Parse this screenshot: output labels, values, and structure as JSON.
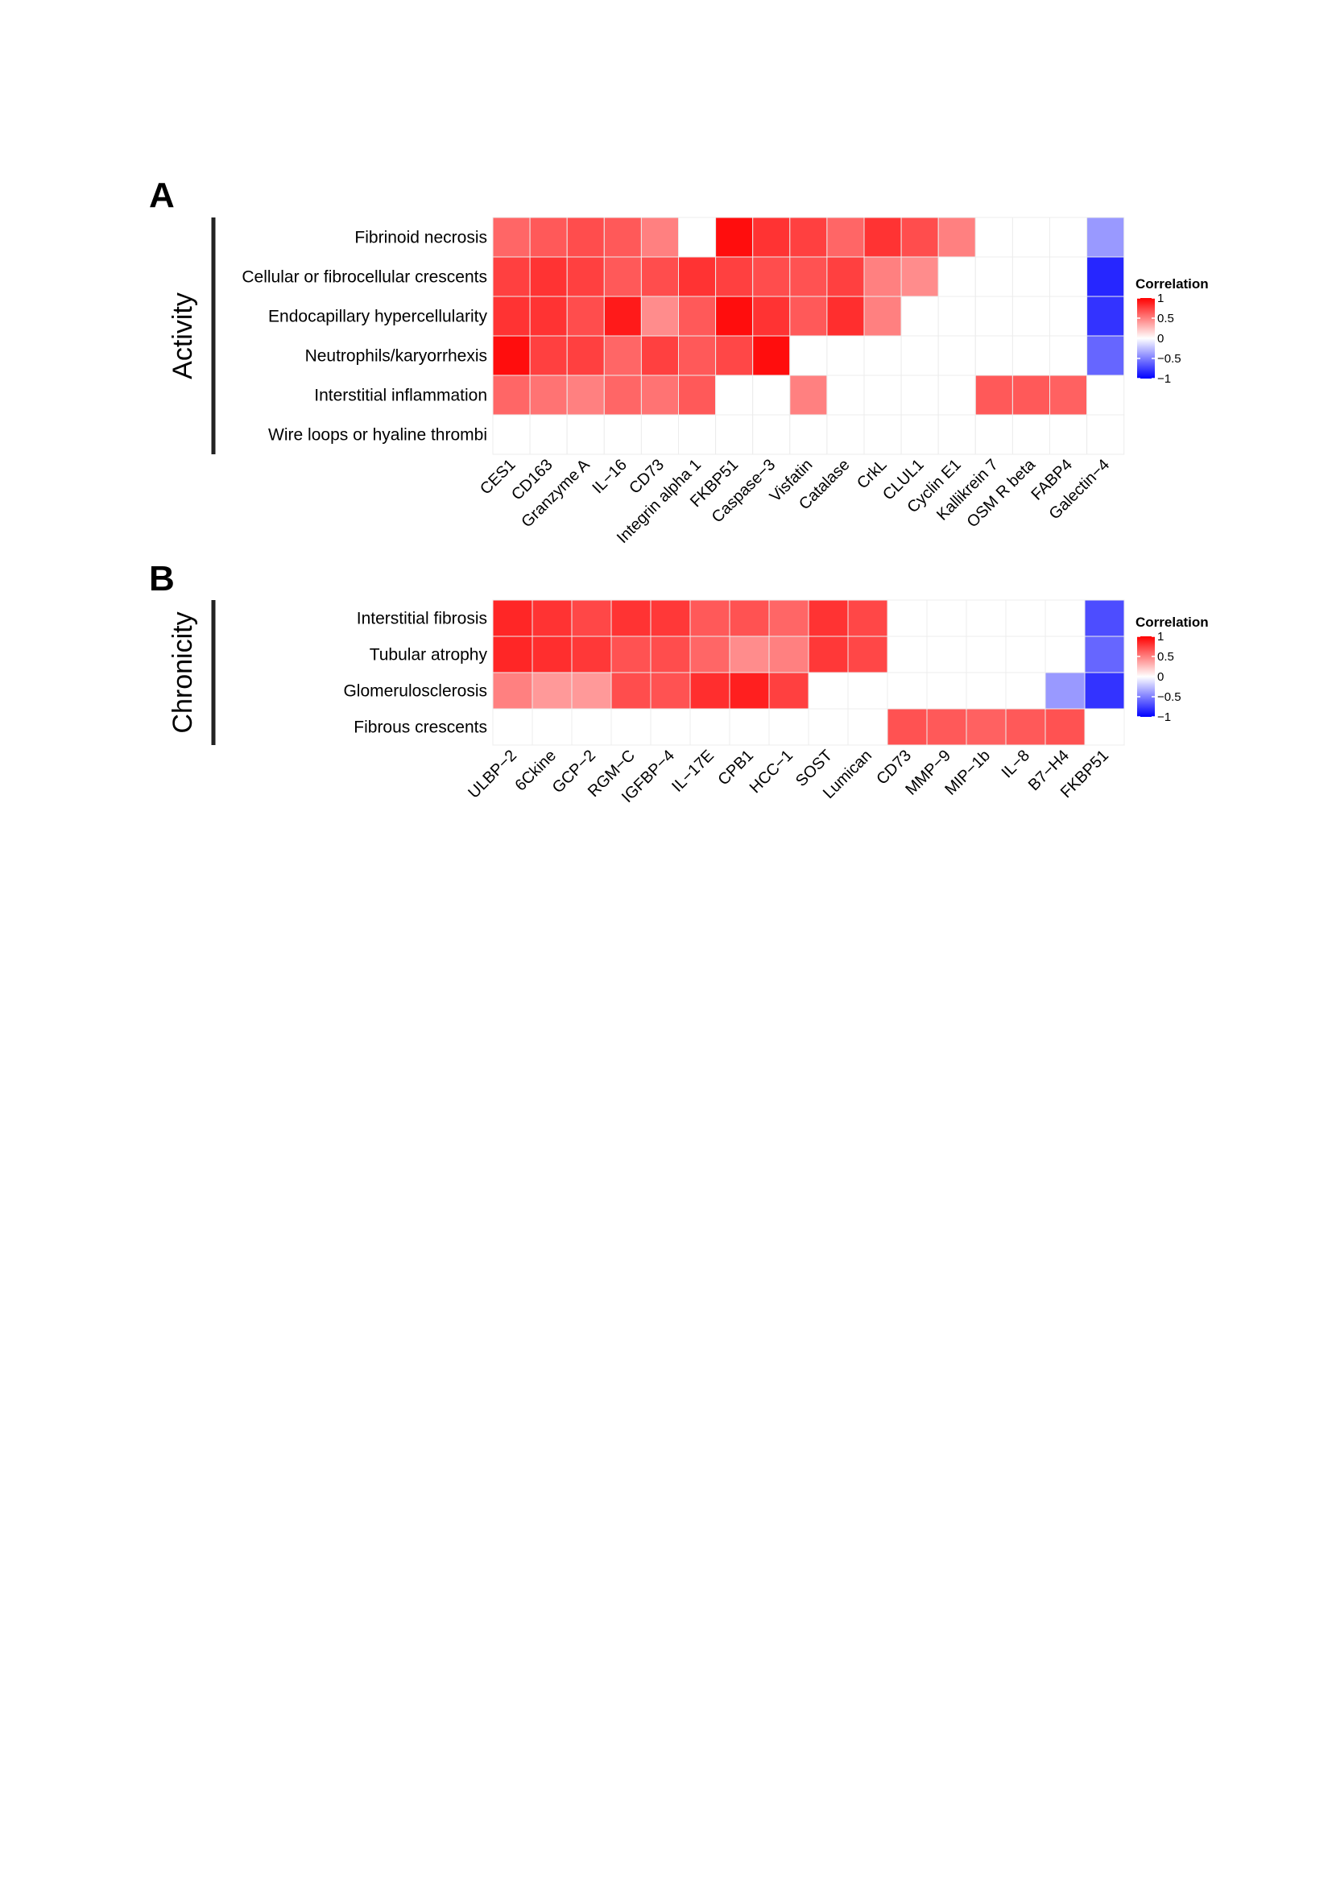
{
  "chart_data": [
    {
      "type": "heatmap",
      "panel_label": "A",
      "group_label": "Activity",
      "rows": [
        "Fibrinoid necrosis",
        "Cellular or fibrocellular crescents",
        "Endocapillary hypercellularity",
        "Neutrophils/karyorrhexis",
        "Interstitial inflammation",
        "Wire loops or hyaline thrombi"
      ],
      "columns": [
        "CES1",
        "CD163",
        "Granzyme A",
        "IL−16",
        "CD73",
        "Integrin alpha 1",
        "FKBP51",
        "Caspase−3",
        "Visfatin",
        "Catalase",
        "CrkL",
        "CLUL1",
        "Cyclin E1",
        "Kallikrein 7",
        "OSM R beta",
        "FABP4",
        "Galectin−4"
      ],
      "values": [
        [
          0.6,
          0.65,
          0.7,
          0.65,
          0.5,
          0,
          0.95,
          0.8,
          0.75,
          0.6,
          0.8,
          0.7,
          0.5,
          0,
          0,
          0,
          -0.4
        ],
        [
          0.75,
          0.8,
          0.75,
          0.65,
          0.7,
          0.8,
          0.75,
          0.7,
          0.68,
          0.75,
          0.5,
          0.45,
          0,
          0,
          0,
          0,
          -0.85
        ],
        [
          0.8,
          0.8,
          0.7,
          0.9,
          0.45,
          0.65,
          0.95,
          0.8,
          0.65,
          0.82,
          0.5,
          0,
          0,
          0,
          0,
          0,
          -0.8
        ],
        [
          0.95,
          0.75,
          0.75,
          0.6,
          0.75,
          0.65,
          0.72,
          0.95,
          0,
          0,
          0,
          0,
          0,
          0,
          0,
          0,
          -0.6
        ],
        [
          0.6,
          0.55,
          0.5,
          0.6,
          0.55,
          0.65,
          0,
          0,
          0.5,
          0,
          0,
          0,
          0,
          0.65,
          0.65,
          0.62,
          0
        ],
        [
          0,
          0,
          0,
          0,
          0,
          0,
          0,
          0,
          0,
          0,
          0,
          0,
          0,
          0,
          0,
          0,
          0
        ]
      ],
      "legend": {
        "title": "Correlation",
        "ticks": [
          "1",
          "0.5",
          "0",
          "−0.5",
          "−1"
        ],
        "range": [
          -1,
          1
        ]
      },
      "colors": {
        "high": "#ff0000",
        "mid": "#ffffff",
        "low": "#0000ff"
      }
    },
    {
      "type": "heatmap",
      "panel_label": "B",
      "group_label": "Chronicity",
      "rows": [
        "Interstitial fibrosis",
        "Tubular atrophy",
        "Glomerulosclerosis",
        "Fibrous crescents"
      ],
      "columns": [
        "ULBP−2",
        "6Ckine",
        "GCP−2",
        "RGM−C",
        "IGFBP−4",
        "IL−17E",
        "CPB1",
        "HCC−1",
        "SOST",
        "Lumican",
        "CD73",
        "MMP−9",
        "MIP−1b",
        "IL−8",
        "B7−H4",
        "FKBP51"
      ],
      "values": [
        [
          0.85,
          0.8,
          0.72,
          0.8,
          0.78,
          0.65,
          0.68,
          0.6,
          0.8,
          0.72,
          0,
          0,
          0,
          0,
          0,
          -0.7
        ],
        [
          0.85,
          0.82,
          0.78,
          0.68,
          0.7,
          0.6,
          0.45,
          0.5,
          0.78,
          0.72,
          0,
          0,
          0,
          0,
          0,
          -0.6
        ],
        [
          0.5,
          0.4,
          0.4,
          0.7,
          0.68,
          0.82,
          0.88,
          0.75,
          0,
          0,
          0,
          0,
          0,
          0,
          -0.4,
          -0.8
        ],
        [
          0,
          0,
          0,
          0,
          0,
          0,
          0,
          0,
          0,
          0,
          0.68,
          0.65,
          0.62,
          0.65,
          0.68,
          0
        ]
      ],
      "legend": {
        "title": "Correlation",
        "ticks": [
          "1",
          "0.5",
          "0",
          "−0.5",
          "−1"
        ],
        "range": [
          -1,
          1
        ]
      },
      "colors": {
        "high": "#ff0000",
        "mid": "#ffffff",
        "low": "#0000ff"
      }
    }
  ]
}
